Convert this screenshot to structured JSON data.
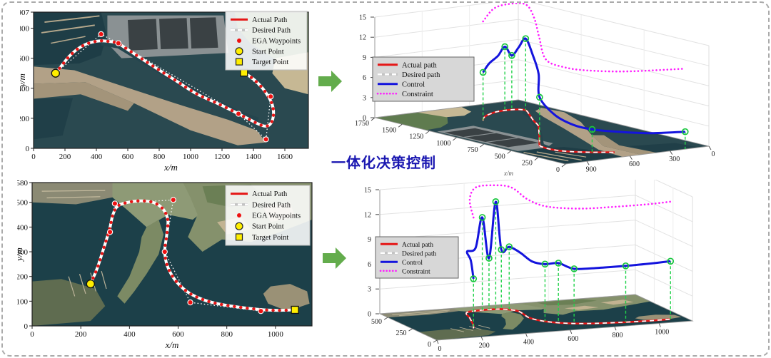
{
  "figure": {
    "caption": "一体化决策控制",
    "caption_color": "#1b18b1",
    "arrow_color": "#63ac4c",
    "border_color": "#ababab"
  },
  "colors": {
    "actual_path": "#e51616",
    "desired_path": "#ffffff",
    "waypoint_dotline": "#f5f5f5",
    "waypoint": "#ee1111",
    "start_point": "#ffee00",
    "target_point": "#ffee00",
    "control": "#1414dd",
    "constraint": "#ff1cff",
    "marker_green": "#19c73e",
    "drop_line_green": "#21d24a",
    "legend_bg_3d": "#d7d7d7",
    "legend_bg_map": "rgba(255,255,255,0.88)",
    "water_top": "#2a4950",
    "water_bottom": "#1c4049",
    "grid_3d": "#e2e2e2",
    "axis": "#333333"
  },
  "chart_data": [
    {
      "id": "map_top",
      "type": "line",
      "title": "",
      "xlabel": "x/m",
      "ylabel": "y/m",
      "xlim": [
        0,
        1750
      ],
      "ylim": [
        0,
        907
      ],
      "xticks": [
        0,
        200,
        400,
        600,
        800,
        1000,
        1200,
        1400,
        1600
      ],
      "yticks": [
        0,
        200,
        400,
        600,
        800,
        907
      ],
      "legend": [
        {
          "label": "Actual Path",
          "swatch": "line-red"
        },
        {
          "label": "Desired Path",
          "swatch": "line-dashed-white"
        },
        {
          "label": "EGA Waypoints",
          "swatch": "dot-red"
        },
        {
          "label": "Start Point",
          "swatch": "circle-yellow"
        },
        {
          "label": "Target Point",
          "swatch": "square-yellow"
        }
      ],
      "start_point": [
        140,
        500
      ],
      "target_point": [
        1340,
        505
      ],
      "waypoints": [
        [
          430,
          760
        ],
        [
          540,
          700
        ],
        [
          1305,
          230
        ],
        [
          1480,
          60
        ],
        [
          1510,
          345
        ]
      ],
      "path": [
        [
          140,
          500
        ],
        [
          175,
          545
        ],
        [
          225,
          610
        ],
        [
          285,
          665
        ],
        [
          350,
          700
        ],
        [
          420,
          715
        ],
        [
          480,
          712
        ],
        [
          540,
          697
        ],
        [
          640,
          630
        ],
        [
          760,
          548
        ],
        [
          900,
          455
        ],
        [
          1040,
          362
        ],
        [
          1180,
          295
        ],
        [
          1300,
          232
        ],
        [
          1370,
          195
        ],
        [
          1430,
          163
        ],
        [
          1470,
          148
        ],
        [
          1500,
          155
        ],
        [
          1520,
          185
        ],
        [
          1528,
          235
        ],
        [
          1520,
          290
        ],
        [
          1495,
          345
        ],
        [
          1450,
          410
        ],
        [
          1395,
          465
        ],
        [
          1340,
          505
        ]
      ]
    },
    {
      "id": "map_bot",
      "type": "line",
      "title": "",
      "xlabel": "x/m",
      "ylabel": "y/m",
      "xlim": [
        0,
        1150
      ],
      "ylim": [
        0,
        580
      ],
      "xticks": [
        0,
        200,
        400,
        600,
        800,
        1000
      ],
      "yticks": [
        0,
        100,
        200,
        300,
        400,
        500,
        580
      ],
      "legend": [
        {
          "label": "Actual Path",
          "swatch": "line-red"
        },
        {
          "label": "Desired Path",
          "swatch": "line-dashed-white"
        },
        {
          "label": "EGA Waypoints",
          "swatch": "dot-red"
        },
        {
          "label": "Start Point",
          "swatch": "circle-yellow"
        },
        {
          "label": "Target Point",
          "swatch": "square-yellow"
        }
      ],
      "start_point": [
        240,
        170
      ],
      "target_point": [
        1080,
        65
      ],
      "waypoints": [
        [
          320,
          380
        ],
        [
          340,
          495
        ],
        [
          580,
          510
        ],
        [
          545,
          300
        ],
        [
          650,
          95
        ],
        [
          940,
          60
        ]
      ],
      "path": [
        [
          240,
          170
        ],
        [
          268,
          235
        ],
        [
          296,
          320
        ],
        [
          318,
          390
        ],
        [
          332,
          450
        ],
        [
          352,
          485
        ],
        [
          395,
          500
        ],
        [
          450,
          506
        ],
        [
          502,
          498
        ],
        [
          540,
          470
        ],
        [
          558,
          425
        ],
        [
          552,
          360
        ],
        [
          545,
          300
        ],
        [
          556,
          242
        ],
        [
          588,
          185
        ],
        [
          638,
          138
        ],
        [
          698,
          108
        ],
        [
          762,
          90
        ],
        [
          850,
          76
        ],
        [
          940,
          66
        ],
        [
          1010,
          63
        ],
        [
          1080,
          65
        ]
      ]
    },
    {
      "id": "ctrl_top",
      "type": "line3d",
      "title": "",
      "xlabel": "x/m",
      "zticks": [
        0,
        3,
        6,
        9,
        12,
        15
      ],
      "left_axis_ticks": [
        1750,
        1500,
        1250,
        1000,
        750,
        500,
        250,
        0
      ],
      "right_axis_ticks": [
        900,
        600,
        300,
        0
      ],
      "legend": [
        {
          "label": "Actual path",
          "swatch": "line-red"
        },
        {
          "label": "Desired path",
          "swatch": "line-dashed-white"
        },
        {
          "label": "Control",
          "swatch": "line-blue"
        },
        {
          "label": "Constraint",
          "swatch": "dot-magenta"
        }
      ],
      "control": {
        "t": [
          0,
          0.04,
          0.08,
          0.11,
          0.14,
          0.17,
          0.2,
          0.25,
          0.3,
          0.36,
          0.44,
          0.52,
          0.6,
          0.7,
          0.85,
          1.0
        ],
        "z": [
          7.2,
          7.6,
          8.3,
          9.5,
          8.1,
          9.3,
          10.7,
          9.6,
          8.2,
          6.8,
          5.2,
          4.0,
          3.4,
          3.1,
          2.8,
          2.6
        ],
        "marker_t": [
          0,
          0.11,
          0.14,
          0.2,
          0.36,
          0.6,
          1.0
        ]
      },
      "constraint": {
        "t": [
          0,
          0.06,
          0.12,
          0.2,
          0.26,
          0.32,
          0.4,
          0.48,
          0.58,
          0.75,
          1.0
        ],
        "z": [
          14.8,
          15.5,
          15.8,
          15.8,
          15.4,
          14.4,
          13.2,
          12.5,
          12.2,
          12.1,
          12.0
        ]
      }
    },
    {
      "id": "ctrl_bot",
      "type": "line3d",
      "title": "",
      "xlabel": "",
      "zticks": [
        0,
        3,
        6,
        9,
        12,
        15
      ],
      "left_axis_ticks": [
        500,
        250,
        0
      ],
      "bottom_axis_ticks": [
        0,
        200,
        400,
        600,
        800,
        1000
      ],
      "legend": [
        {
          "label": "Actual path",
          "swatch": "line-red"
        },
        {
          "label": "Desired path",
          "swatch": "line-dashed-white"
        },
        {
          "label": "Control",
          "swatch": "line-blue"
        },
        {
          "label": "Constraint",
          "swatch": "dot-magenta"
        }
      ],
      "control": {
        "t": [
          0,
          0.04,
          0.08,
          0.12,
          0.15,
          0.18,
          0.21,
          0.235,
          0.27,
          0.32,
          0.38,
          0.44,
          0.5,
          0.57,
          0.68,
          0.8,
          0.9,
          1.0
        ],
        "z": [
          6.0,
          7.2,
          7.4,
          7.6,
          11.2,
          6.2,
          13.0,
          7.2,
          7.6,
          7.2,
          6.9,
          6.9,
          7.2,
          6.6,
          6.7,
          6.8,
          6.9,
          7.0
        ],
        "marker_t": [
          0,
          0.15,
          0.18,
          0.21,
          0.235,
          0.27,
          0.44,
          0.5,
          0.57,
          0.8,
          1.0
        ]
      },
      "constraint": {
        "t": [
          0,
          0.05,
          0.12,
          0.2,
          0.28,
          0.36,
          0.45,
          0.6,
          0.75,
          0.9,
          1.0
        ],
        "z": [
          13.4,
          14.3,
          14.9,
          15.0,
          14.8,
          14.2,
          13.9,
          13.9,
          14.0,
          14.1,
          14.2
        ]
      }
    }
  ]
}
